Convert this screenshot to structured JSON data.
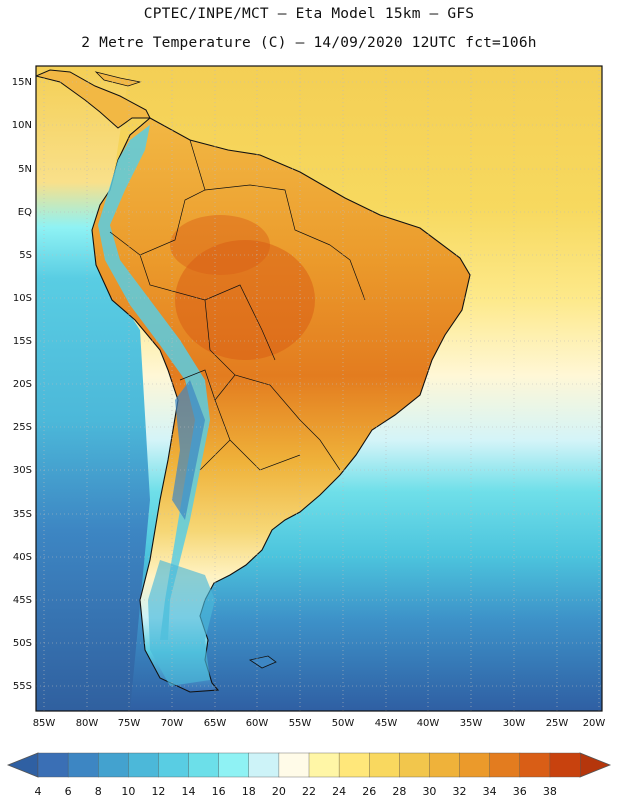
{
  "header": {
    "line1": "CPTEC/INPE/MCT –  Eta Model 15km – GFS",
    "line2": "2 Metre Temperature (C) – 14/09/2020 12UTC fct=106h"
  },
  "map": {
    "lat_labels": [
      "15N",
      "10N",
      "5N",
      "EQ",
      "5S",
      "10S",
      "15S",
      "20S",
      "25S",
      "30S",
      "35S",
      "40S",
      "45S",
      "50S",
      "55S"
    ],
    "lon_labels": [
      "85W",
      "80W",
      "75W",
      "70W",
      "65W",
      "60W",
      "55W",
      "50W",
      "45W",
      "40W",
      "35W",
      "30W",
      "25W",
      "20W"
    ],
    "grid": "dotted"
  },
  "colorbar": {
    "labels": [
      "4",
      "6",
      "8",
      "10",
      "12",
      "14",
      "16",
      "18",
      "20",
      "22",
      "24",
      "26",
      "28",
      "30",
      "32",
      "34",
      "36",
      "38"
    ],
    "colors": [
      "#3a6fb5",
      "#3d86c3",
      "#43a2cf",
      "#4cb8d9",
      "#59cde3",
      "#6cdfe9",
      "#8ff2f4",
      "#cdf3f8",
      "#fffbe8",
      "#fff6a6",
      "#ffe77a",
      "#f9d85f",
      "#f2c64c",
      "#efb23a",
      "#eb9a2b",
      "#e37c1f",
      "#d95e16",
      "#c8420e"
    ]
  }
}
